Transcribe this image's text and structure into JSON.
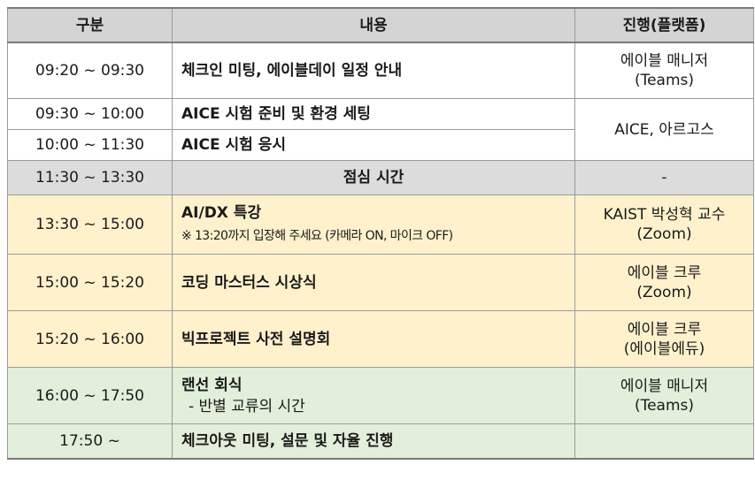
{
  "header": {
    "col1": "구분",
    "col2": "내용",
    "col3": "진행(플랫폼)"
  },
  "rows": [
    {
      "time": "09:20 ~ 09:30",
      "content": "체크인 미팅, 에이블데이 일정 안내",
      "prog_line1": "에이블 매니저",
      "prog_line2": "(Teams)"
    },
    {
      "time": "09:30 ~ 10:00",
      "content": "AICE 시험 준비 및 환경 세팅",
      "prog": "AICE, 아르고스"
    },
    {
      "time": "10:00 ~ 11:30",
      "content": "AICE 시험 응시"
    },
    {
      "time": "11:30 ~ 13:30",
      "content": "점심 시간",
      "prog": "-"
    },
    {
      "time": "13:30 ~ 15:00",
      "content": "AI/DX 특강",
      "note": "※ 13:20까지 입장해 주세요 (카메라 ON, 마이크 OFF)",
      "prog_line1": "KAIST 박성혁 교수",
      "prog_line2": "(Zoom)"
    },
    {
      "time": "15:00 ~ 15:20",
      "content": "코딩 마스터스 시상식",
      "prog_line1": "에이블 크루",
      "prog_line2": "(Zoom)"
    },
    {
      "time": "15:20 ~ 16:00",
      "content": "빅프로젝트 사전 설명회",
      "prog_line1": "에이블 크루",
      "prog_line2": "(에이블에듀)"
    },
    {
      "time": "16:00 ~ 17:50",
      "content": "랜선 회식",
      "sub": "-  반별 교류의 시간",
      "prog_line1": "에이블 매니저",
      "prog_line2": "(Teams)"
    },
    {
      "time": "17:50 ~",
      "content": "체크아웃 미팅, 설문 및 자율 진행",
      "prog": ""
    }
  ],
  "colors": {
    "header": "#d4d4d4",
    "white": "#ffffff",
    "lunch": "#dcdcdc",
    "afternoon": "#fff1cc",
    "evening": "#e2efda"
  }
}
